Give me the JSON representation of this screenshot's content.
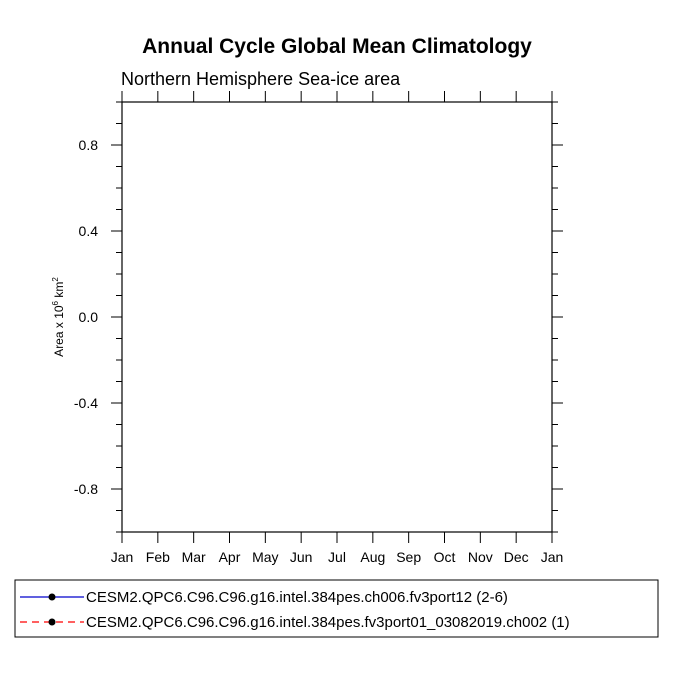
{
  "chart_data": {
    "type": "line",
    "title": "Annual Cycle Global Mean Climatology",
    "subtitle": "Northern Hemisphere Sea-ice area",
    "ylabel": {
      "text": "Area x 10",
      "sup1": "6",
      "mid": " km",
      "sup2": "2"
    },
    "xlabel": "",
    "x_tick_labels": [
      "Jan",
      "Feb",
      "Mar",
      "Apr",
      "May",
      "Jun",
      "Jul",
      "Aug",
      "Sep",
      "Oct",
      "Nov",
      "Dec",
      "Jan"
    ],
    "y_tick_values": [
      0.8,
      0.4,
      0.0,
      -0.4,
      -0.8
    ],
    "y_tick_labels": [
      "0.8",
      "0.4",
      "0.0",
      "-0.4",
      "-0.8"
    ],
    "xlim": [
      0,
      12
    ],
    "ylim": [
      -1.0,
      1.0
    ],
    "y_minor_step": 0.1,
    "grid": false,
    "series": [
      {
        "name": "CESM2.QPC6.C96.C96.g16.intel.384pes.ch006.fv3port12 (2-6)",
        "color": "#0000cc",
        "line_style": "solid",
        "marker": "filled-circle",
        "values": []
      },
      {
        "name": "CESM2.QPC6.C96.C96.g16.intel.384pes.fv3port01_03082019.ch002 (1)",
        "color": "#ff0000",
        "line_style": "dashed",
        "marker": "filled-circle",
        "values": []
      }
    ],
    "legend_placement": "bottom"
  }
}
